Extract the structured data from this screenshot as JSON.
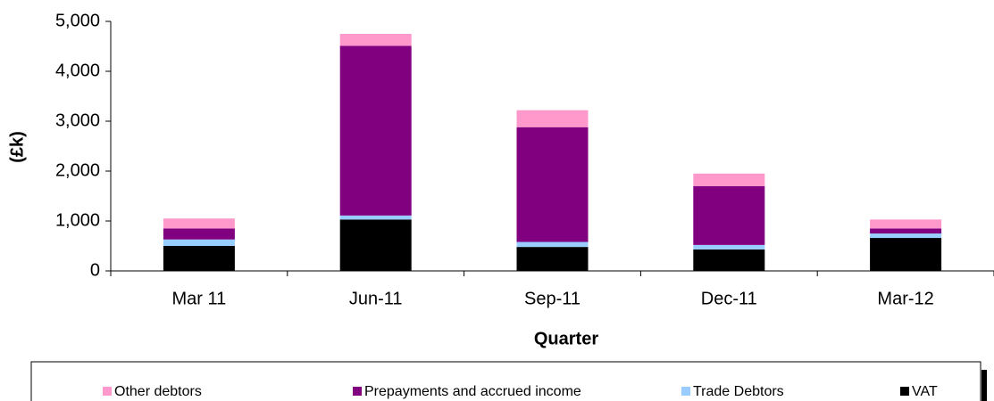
{
  "chart_data": {
    "type": "stacked_bar",
    "x_label": "Quarter",
    "y_label": "(£k)",
    "categories": [
      "Mar 11",
      "Jun-11",
      "Sep-11",
      "Dec-11",
      "Mar-12"
    ],
    "series": [
      {
        "name": "Other debtors",
        "color": "#ff99cc",
        "values": [
          200,
          240,
          340,
          250,
          180
        ]
      },
      {
        "name": "Prepayments and accrued income",
        "color": "#800080",
        "values": [
          220,
          3400,
          2300,
          1180,
          100
        ]
      },
      {
        "name": "Trade Debtors",
        "color": "#99ccff",
        "values": [
          130,
          80,
          100,
          90,
          90
        ]
      },
      {
        "name": "VAT",
        "color": "#000000",
        "values": [
          500,
          1030,
          480,
          430,
          660
        ]
      }
    ],
    "ylim": [
      0,
      5000
    ],
    "yticks": [
      0,
      {
        "value": 1000,
        "label": "1,000"
      },
      {
        "value": 2000,
        "label": "2,000"
      },
      {
        "value": 3000,
        "label": "3,000"
      },
      {
        "value": 4000,
        "label": "4,000"
      },
      {
        "value": 5000,
        "label": "5,000"
      }
    ],
    "legend": "bottom"
  }
}
